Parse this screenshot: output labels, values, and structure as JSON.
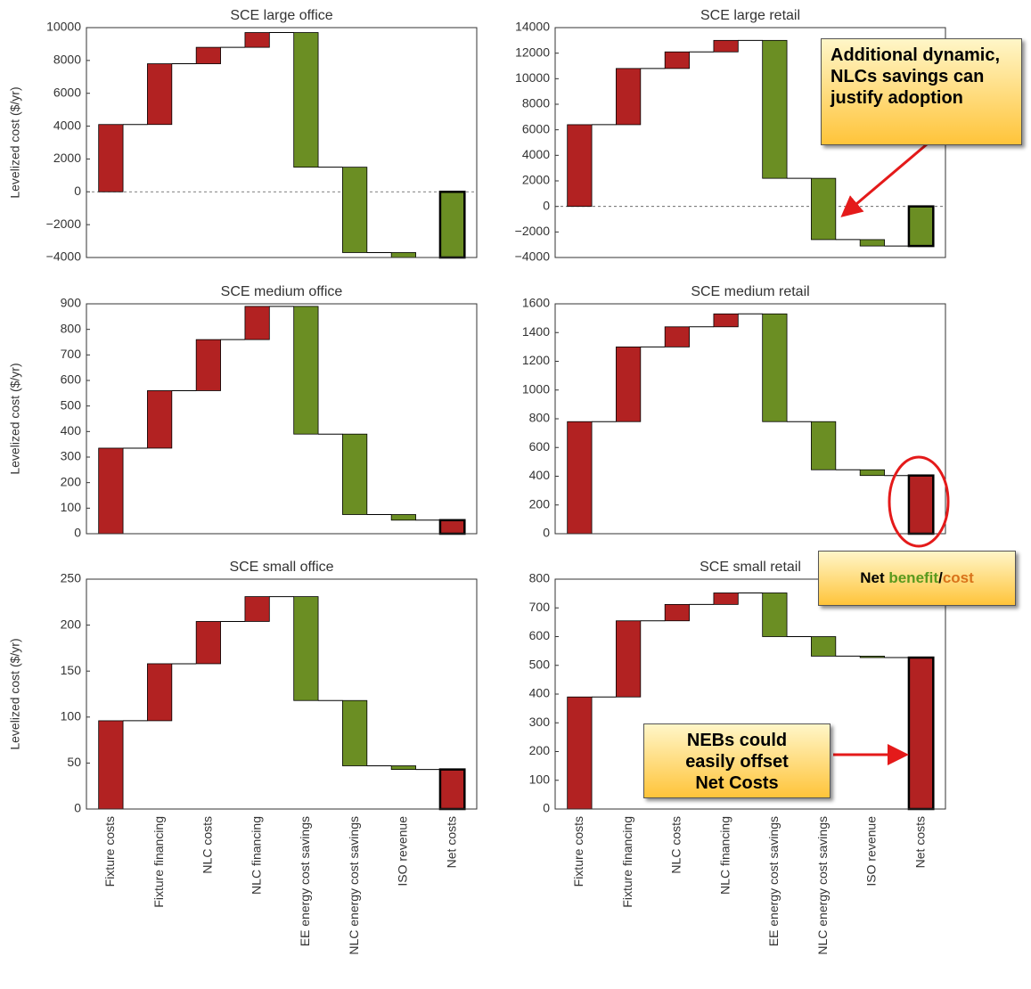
{
  "chart_data": [
    {
      "type": "waterfall",
      "title": "SCE large office",
      "y_label": "Levelized cost ($/yr)",
      "values": [
        4100,
        3700,
        1000,
        900,
        -8200,
        -5200,
        -300,
        -4000
      ],
      "ylim": [
        -4000,
        10000
      ],
      "yticks": [
        {
          "value": -4000,
          "label": "−4000"
        },
        {
          "value": -2000,
          "label": "−2000"
        },
        0,
        2000,
        4000,
        6000,
        8000,
        10000
      ],
      "cost_color": "#b22222",
      "saving_color": "#6b8e23",
      "zero_line": true
    },
    {
      "type": "waterfall",
      "title": "SCE large retail",
      "values": [
        6400,
        4400,
        1300,
        900,
        -10800,
        -4800,
        -500,
        -3100
      ],
      "ylim": [
        -4000,
        14000
      ],
      "yticks": [
        {
          "value": -4000,
          "label": "−4000"
        },
        {
          "value": -2000,
          "label": "−2000"
        },
        0,
        2000,
        4000,
        6000,
        8000,
        10000,
        12000,
        14000
      ],
      "cost_color": "#b22222",
      "saving_color": "#6b8e23",
      "zero_line": true
    },
    {
      "type": "waterfall",
      "title": "SCE medium office",
      "y_label": "Levelized cost ($/yr)",
      "values": [
        335,
        225,
        200,
        130,
        -500,
        -315,
        -22,
        53
      ],
      "ylim": [
        0,
        900
      ],
      "yticks": [
        0,
        100,
        200,
        300,
        400,
        500,
        600,
        700,
        800,
        900
      ],
      "cost_color": "#b22222",
      "saving_color": "#6b8e23",
      "zero_line": false
    },
    {
      "type": "waterfall",
      "title": "SCE medium retail",
      "values": [
        780,
        520,
        140,
        90,
        -750,
        -335,
        -40,
        405
      ],
      "ylim": [
        0,
        1600
      ],
      "yticks": [
        0,
        200,
        400,
        600,
        800,
        1000,
        1200,
        1400,
        1600
      ],
      "cost_color": "#b22222",
      "saving_color": "#6b8e23",
      "zero_line": false
    },
    {
      "type": "waterfall",
      "title": "SCE small office",
      "y_label": "Levelized cost ($/yr)",
      "categories": [
        "Fixture costs",
        "Fixture financing",
        "NLC costs",
        "NLC financing",
        "EE energy cost savings",
        "NLC energy cost savings",
        "ISO revenue",
        "Net costs"
      ],
      "values": [
        96,
        62,
        46,
        27,
        -113,
        -71,
        -4,
        43
      ],
      "ylim": [
        0,
        250
      ],
      "yticks": [
        0,
        50,
        100,
        150,
        200,
        250
      ],
      "cost_color": "#b22222",
      "saving_color": "#6b8e23",
      "zero_line": false
    },
    {
      "type": "waterfall",
      "title": "SCE small retail",
      "categories": [
        "Fixture costs",
        "Fixture financing",
        "NLC costs",
        "NLC financing",
        "EE energy cost savings",
        "NLC energy cost savings",
        "ISO revenue",
        "Net costs"
      ],
      "values": [
        390,
        265,
        57,
        40,
        -152,
        -68,
        -5,
        527
      ],
      "ylim": [
        0,
        800
      ],
      "yticks": [
        0,
        100,
        200,
        300,
        400,
        500,
        600,
        700,
        800
      ],
      "cost_color": "#b22222",
      "saving_color": "#6b8e23",
      "zero_line": false
    }
  ],
  "annotations": {
    "adoption": "Additional dynamic, NLCs savings can justify adoption",
    "net": [
      "Net ",
      "benefit",
      "/",
      "cost"
    ],
    "nebs": "NEBs could easily offset Net Costs"
  }
}
